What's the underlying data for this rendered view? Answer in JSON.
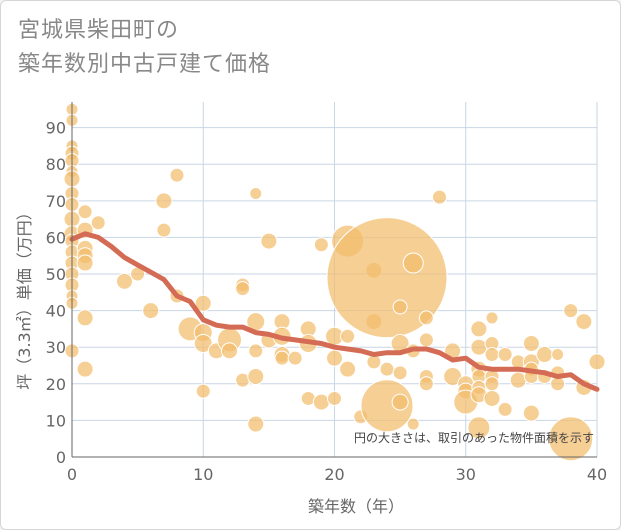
{
  "chart_data": {
    "type": "scatter",
    "title": "宮城県柴田町の\n築年数別中古戸建て価格",
    "xlabel": "築年数（年）",
    "ylabel": "坪（3.3㎡）単価（万円）",
    "xlim": [
      0,
      40
    ],
    "ylim": [
      0,
      97
    ],
    "x_ticks": [
      0,
      10,
      20,
      30,
      40
    ],
    "y_ticks": [
      0,
      10,
      20,
      30,
      40,
      50,
      60,
      70,
      80,
      90
    ],
    "grid": true,
    "note": "円の大きさは、取引のあった物件面積を示す",
    "colors": {
      "bubble": "#f3bd6c",
      "trend": "#d46b54",
      "grid": "#c9d6e6"
    },
    "trend": {
      "x": [
        0,
        1,
        2,
        3,
        4,
        5,
        6,
        7,
        8,
        9,
        10,
        11,
        12,
        13,
        14,
        15,
        16,
        17,
        18,
        19,
        20,
        21,
        22,
        23,
        24,
        25,
        26,
        27,
        28,
        29,
        30,
        31,
        32,
        33,
        34,
        35,
        36,
        37,
        38,
        39,
        40
      ],
      "y": [
        59.5,
        61,
        60,
        57.5,
        54.5,
        52.5,
        50.5,
        48.5,
        44,
        42.5,
        37.5,
        36,
        35.5,
        35.5,
        34,
        33.5,
        32.5,
        32,
        31.5,
        31,
        30,
        29.5,
        29,
        28,
        28.5,
        28.5,
        29.5,
        29.5,
        28.5,
        26.5,
        27,
        24.5,
        24,
        24,
        24,
        23.5,
        23,
        22,
        22.5,
        20,
        18.5
      ]
    },
    "points": [
      {
        "x": 0,
        "y": 95,
        "s": 6
      },
      {
        "x": 0,
        "y": 92,
        "s": 6
      },
      {
        "x": 0,
        "y": 85,
        "s": 6
      },
      {
        "x": 0,
        "y": 83,
        "s": 7
      },
      {
        "x": 0,
        "y": 81,
        "s": 7
      },
      {
        "x": 0,
        "y": 78,
        "s": 6
      },
      {
        "x": 0,
        "y": 76,
        "s": 8
      },
      {
        "x": 0,
        "y": 72,
        "s": 7
      },
      {
        "x": 0,
        "y": 69,
        "s": 7
      },
      {
        "x": 0,
        "y": 65,
        "s": 8
      },
      {
        "x": 0,
        "y": 61,
        "s": 8
      },
      {
        "x": 0,
        "y": 59,
        "s": 7
      },
      {
        "x": 0,
        "y": 56,
        "s": 7
      },
      {
        "x": 0,
        "y": 53,
        "s": 7
      },
      {
        "x": 0,
        "y": 50,
        "s": 7
      },
      {
        "x": 0,
        "y": 47,
        "s": 7
      },
      {
        "x": 0,
        "y": 44,
        "s": 6
      },
      {
        "x": 0,
        "y": 42,
        "s": 6
      },
      {
        "x": 0,
        "y": 29,
        "s": 7
      },
      {
        "x": 1,
        "y": 67,
        "s": 7
      },
      {
        "x": 1,
        "y": 62,
        "s": 8
      },
      {
        "x": 1,
        "y": 57,
        "s": 8
      },
      {
        "x": 1,
        "y": 55,
        "s": 8
      },
      {
        "x": 1,
        "y": 53,
        "s": 8
      },
      {
        "x": 1,
        "y": 38,
        "s": 8
      },
      {
        "x": 1,
        "y": 24,
        "s": 8
      },
      {
        "x": 2,
        "y": 64,
        "s": 7
      },
      {
        "x": 4,
        "y": 48,
        "s": 8
      },
      {
        "x": 5,
        "y": 50,
        "s": 7
      },
      {
        "x": 6,
        "y": 40,
        "s": 8
      },
      {
        "x": 7,
        "y": 70,
        "s": 8
      },
      {
        "x": 7,
        "y": 62,
        "s": 7
      },
      {
        "x": 8,
        "y": 77,
        "s": 7
      },
      {
        "x": 8,
        "y": 44,
        "s": 7
      },
      {
        "x": 9,
        "y": 35,
        "s": 12
      },
      {
        "x": 10,
        "y": 42,
        "s": 8
      },
      {
        "x": 10,
        "y": 34,
        "s": 9
      },
      {
        "x": 10,
        "y": 31,
        "s": 9
      },
      {
        "x": 10,
        "y": 18,
        "s": 7
      },
      {
        "x": 11,
        "y": 29,
        "s": 8
      },
      {
        "x": 12,
        "y": 32,
        "s": 12
      },
      {
        "x": 12,
        "y": 29,
        "s": 8
      },
      {
        "x": 13,
        "y": 47,
        "s": 7
      },
      {
        "x": 13,
        "y": 46,
        "s": 7
      },
      {
        "x": 13,
        "y": 21,
        "s": 7
      },
      {
        "x": 14,
        "y": 72,
        "s": 6
      },
      {
        "x": 14,
        "y": 37,
        "s": 9
      },
      {
        "x": 14,
        "y": 29,
        "s": 7
      },
      {
        "x": 14,
        "y": 22,
        "s": 8
      },
      {
        "x": 14,
        "y": 9,
        "s": 8
      },
      {
        "x": 15,
        "y": 59,
        "s": 8
      },
      {
        "x": 15,
        "y": 32,
        "s": 8
      },
      {
        "x": 16,
        "y": 37,
        "s": 8
      },
      {
        "x": 16,
        "y": 33,
        "s": 9
      },
      {
        "x": 16,
        "y": 28,
        "s": 8
      },
      {
        "x": 16,
        "y": 27,
        "s": 7
      },
      {
        "x": 17,
        "y": 27,
        "s": 7
      },
      {
        "x": 18,
        "y": 35,
        "s": 8
      },
      {
        "x": 18,
        "y": 31,
        "s": 9
      },
      {
        "x": 18,
        "y": 16,
        "s": 7
      },
      {
        "x": 19,
        "y": 58,
        "s": 7
      },
      {
        "x": 19,
        "y": 15,
        "s": 8
      },
      {
        "x": 20,
        "y": 33,
        "s": 9
      },
      {
        "x": 20,
        "y": 27,
        "s": 8
      },
      {
        "x": 20,
        "y": 16,
        "s": 7
      },
      {
        "x": 21,
        "y": 59,
        "s": 16
      },
      {
        "x": 21,
        "y": 33,
        "s": 7
      },
      {
        "x": 21,
        "y": 24,
        "s": 8
      },
      {
        "x": 22,
        "y": 11,
        "s": 7
      },
      {
        "x": 23,
        "y": 51,
        "s": 8
      },
      {
        "x": 23,
        "y": 37,
        "s": 8
      },
      {
        "x": 23,
        "y": 26,
        "s": 7
      },
      {
        "x": 24,
        "y": 49,
        "s": 60
      },
      {
        "x": 24,
        "y": 14,
        "s": 26
      },
      {
        "x": 24,
        "y": 24,
        "s": 7
      },
      {
        "x": 25,
        "y": 41,
        "s": 7
      },
      {
        "x": 25,
        "y": 31,
        "s": 9
      },
      {
        "x": 25,
        "y": 23,
        "s": 7
      },
      {
        "x": 25,
        "y": 15,
        "s": 8
      },
      {
        "x": 26,
        "y": 53,
        "s": 10
      },
      {
        "x": 26,
        "y": 29,
        "s": 7
      },
      {
        "x": 26,
        "y": 9,
        "s": 6
      },
      {
        "x": 27,
        "y": 38,
        "s": 7
      },
      {
        "x": 27,
        "y": 32,
        "s": 7
      },
      {
        "x": 27,
        "y": 22,
        "s": 7
      },
      {
        "x": 27,
        "y": 20,
        "s": 7
      },
      {
        "x": 28,
        "y": 71,
        "s": 7
      },
      {
        "x": 29,
        "y": 29,
        "s": 8
      },
      {
        "x": 29,
        "y": 22,
        "s": 9
      },
      {
        "x": 30,
        "y": 20,
        "s": 8
      },
      {
        "x": 30,
        "y": 18,
        "s": 8
      },
      {
        "x": 30,
        "y": 15,
        "s": 12
      },
      {
        "x": 31,
        "y": 35,
        "s": 8
      },
      {
        "x": 31,
        "y": 30,
        "s": 8
      },
      {
        "x": 31,
        "y": 24,
        "s": 8
      },
      {
        "x": 31,
        "y": 22,
        "s": 7
      },
      {
        "x": 31,
        "y": 19,
        "s": 7
      },
      {
        "x": 31,
        "y": 17,
        "s": 8
      },
      {
        "x": 31,
        "y": 8,
        "s": 11
      },
      {
        "x": 32,
        "y": 38,
        "s": 6
      },
      {
        "x": 32,
        "y": 31,
        "s": 7
      },
      {
        "x": 32,
        "y": 28,
        "s": 7
      },
      {
        "x": 32,
        "y": 22,
        "s": 7
      },
      {
        "x": 32,
        "y": 20,
        "s": 7
      },
      {
        "x": 32,
        "y": 16,
        "s": 8
      },
      {
        "x": 33,
        "y": 28,
        "s": 7
      },
      {
        "x": 33,
        "y": 13,
        "s": 7
      },
      {
        "x": 34,
        "y": 26,
        "s": 7
      },
      {
        "x": 34,
        "y": 21,
        "s": 8
      },
      {
        "x": 35,
        "y": 31,
        "s": 8
      },
      {
        "x": 35,
        "y": 26,
        "s": 8
      },
      {
        "x": 35,
        "y": 24,
        "s": 7
      },
      {
        "x": 35,
        "y": 22,
        "s": 7
      },
      {
        "x": 35,
        "y": 12,
        "s": 8
      },
      {
        "x": 36,
        "y": 28,
        "s": 8
      },
      {
        "x": 36,
        "y": 22,
        "s": 7
      },
      {
        "x": 37,
        "y": 28,
        "s": 6
      },
      {
        "x": 37,
        "y": 23,
        "s": 7
      },
      {
        "x": 37,
        "y": 20,
        "s": 7
      },
      {
        "x": 38,
        "y": 40,
        "s": 7
      },
      {
        "x": 38,
        "y": 5,
        "s": 22
      },
      {
        "x": 39,
        "y": 37,
        "s": 8
      },
      {
        "x": 39,
        "y": 19,
        "s": 8
      },
      {
        "x": 40,
        "y": 26,
        "s": 8
      }
    ]
  }
}
